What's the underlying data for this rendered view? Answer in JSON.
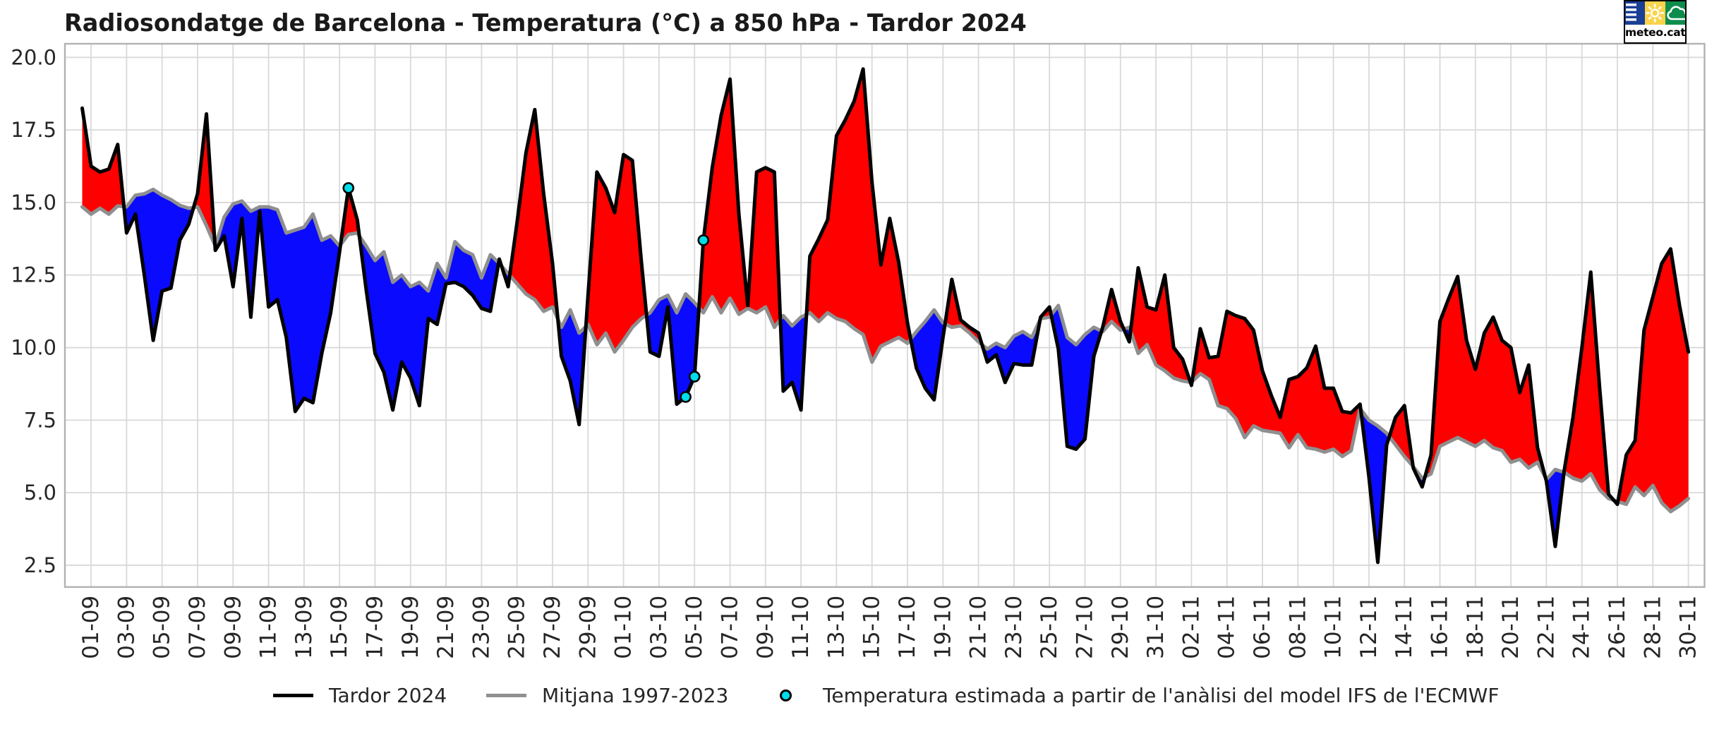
{
  "page": {
    "background": "#ffffff"
  },
  "chart_data": {
    "type": "line",
    "title": "Radiosondatge de Barcelona - Temperatura (°C) a 850 hPa - Tardor 2024",
    "xlabel": "",
    "ylabel": "",
    "y_ticks": [
      2.5,
      5.0,
      7.5,
      10.0,
      12.5,
      15.0,
      17.5,
      20.0
    ],
    "ylim": [
      1.75,
      20.47
    ],
    "x_tick_labels": [
      "01-09",
      "03-09",
      "05-09",
      "07-09",
      "09-09",
      "11-09",
      "13-09",
      "15-09",
      "17-09",
      "19-09",
      "21-09",
      "23-09",
      "25-09",
      "27-09",
      "29-09",
      "01-10",
      "03-10",
      "05-10",
      "07-10",
      "09-10",
      "11-10",
      "13-10",
      "15-10",
      "17-10",
      "19-10",
      "21-10",
      "23-10",
      "25-10",
      "27-10",
      "29-10",
      "31-10",
      "02-11",
      "04-11",
      "06-11",
      "08-11",
      "10-11",
      "12-11",
      "14-11",
      "16-11",
      "18-11",
      "20-11",
      "22-11",
      "24-11",
      "26-11",
      "28-11",
      "30-11"
    ],
    "x_tick_point_index": [
      1,
      5,
      9,
      13,
      17,
      21,
      25,
      29,
      33,
      37,
      41,
      45,
      49,
      53,
      57,
      61,
      65,
      69,
      73,
      77,
      81,
      85,
      89,
      93,
      97,
      101,
      105,
      109,
      113,
      117,
      121,
      125,
      129,
      133,
      137,
      141,
      145,
      149,
      153,
      157,
      161,
      165,
      169,
      173,
      177,
      181
    ],
    "points_per_day": 2,
    "x_range_note": "182 half-daily radiosonde points (00h/12h), first point half a day before the 01-09 tick, last point on the 30-11 tick",
    "grid": true,
    "legend_position": "bottom",
    "series": [
      {
        "name": "Tardor 2024",
        "color": "#000000",
        "line_width": 5,
        "values": [
          18.25,
          16.25,
          16.05,
          16.15,
          17.0,
          13.95,
          14.6,
          12.5,
          10.25,
          11.95,
          12.05,
          13.7,
          14.25,
          15.3,
          18.05,
          13.35,
          13.85,
          12.1,
          14.45,
          11.05,
          14.7,
          11.4,
          11.65,
          10.35,
          7.8,
          8.25,
          8.1,
          9.8,
          11.2,
          13.3,
          15.5,
          14.4,
          12.0,
          9.8,
          9.15,
          7.85,
          9.5,
          8.95,
          8.0,
          11.0,
          10.8,
          12.2,
          12.25,
          12.1,
          11.8,
          11.35,
          11.25,
          13.05,
          12.1,
          14.3,
          16.7,
          18.2,
          15.3,
          12.9,
          9.7,
          8.85,
          7.35,
          11.8,
          16.05,
          15.5,
          14.65,
          16.65,
          16.45,
          13.0,
          9.85,
          9.7,
          11.4,
          8.05,
          8.3,
          9.0,
          13.7,
          16.2,
          18.0,
          19.25,
          14.6,
          11.45,
          16.05,
          16.2,
          16.05,
          8.5,
          8.8,
          7.85,
          13.15,
          13.75,
          14.4,
          17.3,
          17.85,
          18.5,
          19.6,
          15.7,
          12.85,
          14.45,
          12.95,
          10.85,
          9.3,
          8.6,
          8.2,
          10.35,
          12.35,
          10.95,
          10.7,
          10.5,
          9.5,
          9.75,
          8.8,
          9.45,
          9.4,
          9.4,
          11.05,
          11.4,
          9.95,
          6.6,
          6.5,
          6.85,
          9.7,
          10.7,
          12.0,
          10.9,
          10.2,
          12.75,
          11.4,
          11.3,
          12.5,
          10.0,
          9.6,
          8.7,
          10.65,
          9.65,
          9.7,
          11.25,
          11.1,
          11.0,
          10.6,
          9.2,
          8.35,
          7.6,
          8.9,
          9.0,
          9.3,
          10.05,
          8.6,
          8.6,
          7.8,
          7.75,
          8.05,
          5.55,
          2.6,
          6.65,
          7.6,
          8.0,
          5.85,
          5.2,
          6.3,
          10.9,
          11.7,
          12.45,
          10.25,
          9.25,
          10.5,
          11.05,
          10.25,
          10.0,
          8.45,
          9.4,
          6.55,
          5.4,
          3.15,
          5.75,
          7.6,
          10.0,
          12.6,
          8.6,
          4.95,
          4.6,
          6.3,
          6.8,
          10.6,
          11.75,
          12.9,
          13.4,
          11.45,
          9.85
        ]
      },
      {
        "name": "Mitjana 1997-2023",
        "color": "#8f8f8f",
        "line_width": 5,
        "values": [
          14.85,
          14.6,
          14.8,
          14.6,
          14.88,
          14.85,
          15.25,
          15.3,
          15.45,
          15.25,
          15.1,
          14.9,
          14.8,
          14.85,
          14.2,
          13.5,
          14.5,
          14.95,
          15.05,
          14.7,
          14.85,
          14.85,
          14.75,
          13.95,
          14.05,
          14.15,
          14.6,
          13.7,
          13.85,
          13.5,
          13.9,
          13.95,
          13.5,
          13.0,
          13.3,
          12.25,
          12.5,
          12.1,
          12.25,
          11.95,
          12.9,
          12.4,
          13.65,
          13.35,
          13.2,
          12.4,
          13.2,
          12.9,
          12.55,
          12.2,
          11.85,
          11.65,
          11.25,
          11.4,
          10.7,
          11.3,
          10.5,
          10.8,
          10.1,
          10.5,
          9.85,
          10.25,
          10.7,
          11.0,
          11.2,
          11.65,
          11.8,
          11.2,
          11.85,
          11.55,
          11.2,
          11.75,
          11.2,
          11.7,
          11.15,
          11.35,
          11.2,
          11.4,
          10.7,
          11.1,
          10.75,
          11.05,
          11.2,
          10.9,
          11.2,
          11.0,
          10.9,
          10.65,
          10.45,
          9.5,
          10.05,
          10.2,
          10.35,
          10.15,
          10.55,
          10.9,
          11.3,
          10.85,
          10.7,
          10.75,
          10.5,
          10.2,
          9.95,
          10.15,
          10.0,
          10.4,
          10.55,
          10.35,
          11.0,
          11.05,
          11.45,
          10.35,
          10.1,
          10.45,
          10.7,
          10.55,
          10.9,
          10.6,
          10.7,
          9.8,
          10.1,
          9.4,
          9.2,
          8.95,
          8.85,
          8.8,
          9.1,
          8.9,
          8.0,
          7.9,
          7.55,
          6.9,
          7.3,
          7.15,
          7.1,
          7.05,
          6.55,
          7.0,
          6.55,
          6.5,
          6.4,
          6.5,
          6.25,
          6.45,
          7.9,
          7.5,
          7.3,
          7.05,
          6.65,
          6.25,
          5.9,
          5.5,
          5.65,
          6.6,
          6.75,
          6.9,
          6.75,
          6.6,
          6.8,
          6.55,
          6.45,
          6.05,
          6.15,
          5.85,
          6.05,
          5.45,
          5.8,
          5.7,
          5.5,
          5.4,
          5.65,
          5.1,
          4.8,
          4.7,
          4.6,
          5.2,
          4.9,
          5.25,
          4.65,
          4.35,
          4.55,
          4.8
        ]
      }
    ],
    "fill_between": {
      "above_color": "#fe0000",
      "below_color": "#0a0aff",
      "note": "red where Tardor 2024 > Mitjana, blue where below"
    },
    "markers": {
      "name": "Temperatura estimada a partir de l'anàlisi del model IFS de l'ECMWF",
      "color": "#00dce8",
      "edge_color": "#000000",
      "point_indices": [
        30,
        68,
        69,
        70
      ]
    }
  },
  "legend": {
    "tardor_label": "Tardor 2024",
    "mitjana_label": "Mitjana 1997-2023",
    "ifs_label": "Temperatura estimada a partir de l'anàlisi del model IFS de l'ECMWF"
  },
  "logo": {
    "text": "meteo.cat",
    "tile_blue": "#1a3f94",
    "tile_yellow": "#fbd34b",
    "tile_green": "#0d8d4c"
  }
}
